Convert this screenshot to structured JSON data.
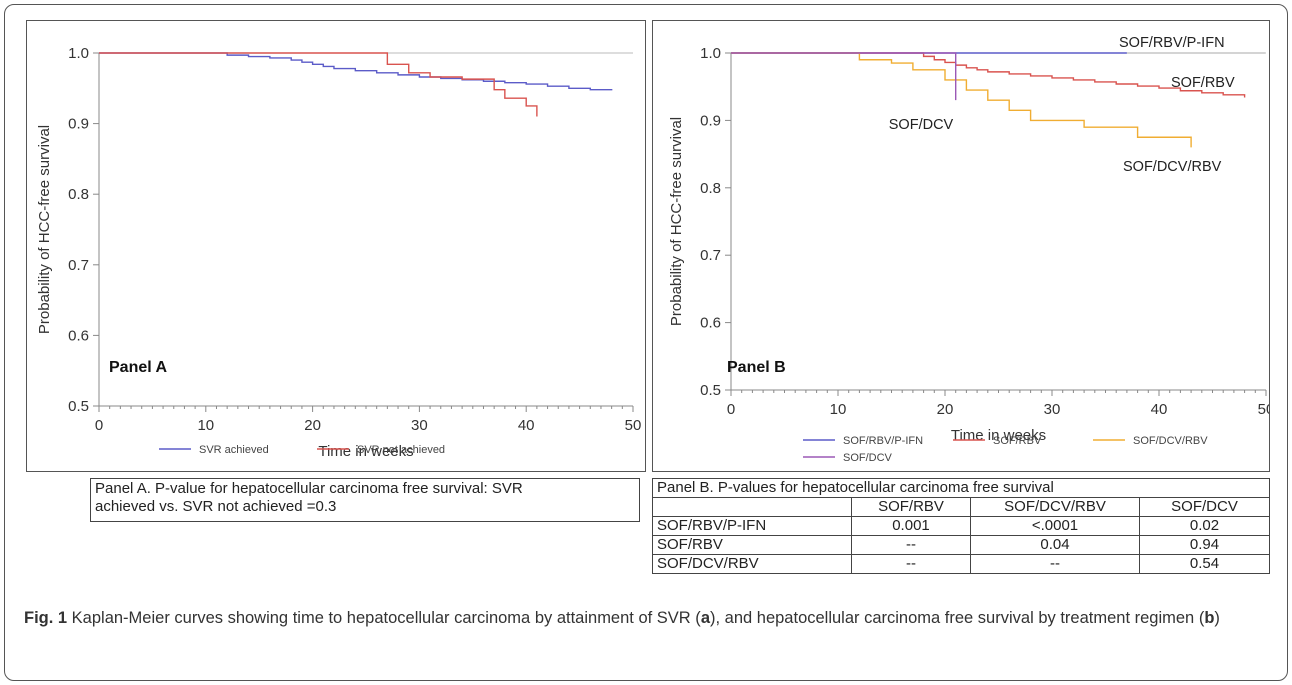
{
  "chart_data": [
    {
      "type": "line",
      "panel_label": "Panel A",
      "xlabel": "Time in weeks",
      "ylabel": "Probability of HCC-free survival",
      "xlim": [
        0,
        50
      ],
      "ylim": [
        0.5,
        1.0
      ],
      "xticks": [
        0,
        10,
        20,
        30,
        40,
        50
      ],
      "xtick_labels": [
        "0",
        "10",
        "20",
        "30",
        "40",
        "50"
      ],
      "yticks": [
        0.5,
        0.6,
        0.7,
        0.8,
        0.9,
        1.0
      ],
      "ytick_labels": [
        "0.5",
        "0.6",
        "0.7",
        "0.8",
        "0.9",
        "1.0"
      ],
      "grid": false,
      "legend_position": "bottom",
      "series": [
        {
          "name": "SVR achieved",
          "color": "#5b5bc8",
          "step": true,
          "x": [
            0,
            12,
            14,
            16,
            18,
            19,
            20,
            21,
            22,
            24,
            26,
            28,
            30,
            32,
            34,
            36,
            38,
            40,
            42,
            44,
            46,
            48
          ],
          "y": [
            1.0,
            0.997,
            0.995,
            0.993,
            0.99,
            0.987,
            0.984,
            0.981,
            0.978,
            0.975,
            0.972,
            0.969,
            0.966,
            0.964,
            0.962,
            0.96,
            0.958,
            0.956,
            0.953,
            0.95,
            0.948,
            0.947
          ]
        },
        {
          "name": "SVR not achieved",
          "color": "#d9534f",
          "step": true,
          "x": [
            0,
            27,
            29,
            31,
            34,
            37,
            38,
            40,
            41
          ],
          "y": [
            1.0,
            0.984,
            0.972,
            0.966,
            0.963,
            0.948,
            0.936,
            0.925,
            0.91
          ]
        }
      ]
    },
    {
      "type": "line",
      "panel_label": "Panel B",
      "xlabel": "Time in weeks",
      "ylabel": "Probability of HCC-free survival",
      "xlim": [
        0,
        50
      ],
      "ylim": [
        0.5,
        1.0
      ],
      "xticks": [
        0,
        10,
        20,
        30,
        40,
        50
      ],
      "xtick_labels": [
        "0",
        "10",
        "20",
        "30",
        "40",
        "50"
      ],
      "yticks": [
        0.5,
        0.6,
        0.7,
        0.8,
        0.9,
        1.0
      ],
      "ytick_labels": [
        "0.5",
        "0.6",
        "0.7",
        "0.8",
        "0.9",
        "1.0"
      ],
      "grid": false,
      "legend_position": "bottom",
      "annotations": [
        "SOF/RBV/P-IFN",
        "SOF/RBV",
        "SOF/DCV",
        "SOF/DCV/RBV"
      ],
      "series": [
        {
          "name": "SOF/RBV/P-IFN",
          "color": "#5b5bc8",
          "step": true,
          "x": [
            0,
            37
          ],
          "y": [
            1.0,
            1.0
          ]
        },
        {
          "name": "SOF/RBV",
          "color": "#d9534f",
          "step": true,
          "x": [
            0,
            18,
            19,
            20,
            21,
            22,
            23,
            24,
            26,
            28,
            30,
            32,
            34,
            36,
            38,
            40,
            42,
            44,
            46,
            48
          ],
          "y": [
            1.0,
            0.995,
            0.99,
            0.986,
            0.982,
            0.978,
            0.975,
            0.972,
            0.969,
            0.966,
            0.963,
            0.96,
            0.957,
            0.954,
            0.951,
            0.948,
            0.944,
            0.941,
            0.938,
            0.934
          ]
        },
        {
          "name": "SOF/DCV/RBV",
          "color": "#f0ad32",
          "step": true,
          "x": [
            0,
            12,
            15,
            17,
            20,
            22,
            24,
            26,
            28,
            33,
            38,
            43
          ],
          "y": [
            1.0,
            0.99,
            0.985,
            0.975,
            0.96,
            0.945,
            0.93,
            0.915,
            0.9,
            0.89,
            0.875,
            0.86
          ]
        },
        {
          "name": "SOF/DCV",
          "color": "#9b59b6",
          "step": true,
          "x": [
            0,
            21
          ],
          "y": [
            1.0,
            0.93
          ]
        }
      ]
    }
  ],
  "panel_a_pvalue": {
    "line1": "Panel A. P-value for hepatocellular carcinoma free survival: SVR",
    "line2": "achieved vs. SVR not achieved =0.3"
  },
  "panel_b_table": {
    "title": "Panel B. P-values for hepatocellular carcinoma free survival",
    "headers": [
      "",
      "SOF/RBV",
      "SOF/DCV/RBV",
      "SOF/DCV"
    ],
    "rows": [
      [
        "SOF/RBV/P-IFN",
        "0.001",
        "<.0001",
        "0.02"
      ],
      [
        "SOF/RBV",
        "--",
        "0.04",
        "0.94"
      ],
      [
        "SOF/DCV/RBV",
        "--",
        "--",
        "0.54"
      ]
    ]
  },
  "caption": {
    "fig_label": "Fig. 1",
    "text_1": " Kaplan-Meier curves showing time to hepatocellular carcinoma by attainment of SVR (",
    "ref_a": "a",
    "text_2": "), and hepatocellular carcinoma free survival by treatment regimen (",
    "ref_b": "b",
    "text_3": ")"
  }
}
